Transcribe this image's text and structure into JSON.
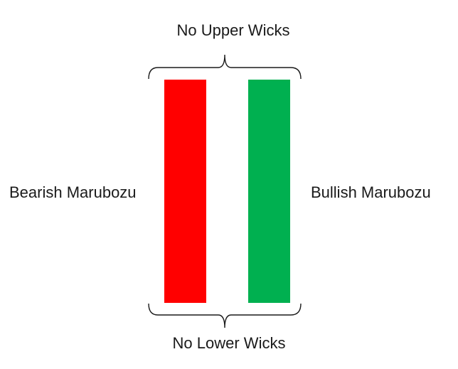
{
  "labels": {
    "top": "No Upper Wicks",
    "bottom": "No Lower Wicks",
    "left": "Bearish Marubozu",
    "right": "Bullish Marubozu"
  },
  "candles": {
    "bearish": {
      "color": "#ff0000"
    },
    "bullish": {
      "color": "#00b050"
    }
  },
  "brace_color": "#1a1a1a"
}
